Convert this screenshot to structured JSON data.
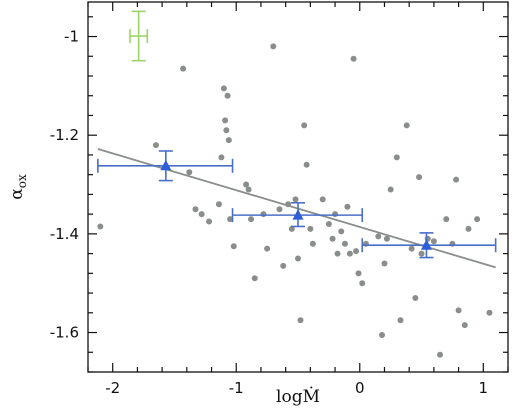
{
  "chart_data": {
    "type": "scatter",
    "xlabel": "logṀ",
    "ylabel": "α",
    "ylabel_sub": "ox",
    "xlim": [
      -2.2,
      1.2
    ],
    "ylim": [
      -1.68,
      -0.93
    ],
    "xticks": [
      -2,
      -1,
      0,
      1
    ],
    "xtick_labels": [
      "-2",
      "-1",
      "0",
      "1"
    ],
    "yticks": [
      -1.6,
      -1.4,
      -1.2,
      -1.0
    ],
    "ytick_labels": [
      "-1.6",
      "-1.4",
      "-1.2",
      "-1"
    ],
    "colors": {
      "points": "#8a8e8b",
      "binned": "#2f5fd6",
      "binned_errorbar": "#4a6fc9",
      "fit_line": "#8a8e8b",
      "typical_error": "#9ed36a"
    },
    "series": [
      {
        "values": [
          [
            -2.1,
            -1.385
          ],
          [
            -1.65,
            -1.22
          ],
          [
            -1.43,
            -1.065
          ],
          [
            -1.38,
            -1.275
          ],
          [
            -1.33,
            -1.35
          ],
          [
            -1.28,
            -1.36
          ],
          [
            -1.22,
            -1.375
          ],
          [
            -1.14,
            -1.34
          ],
          [
            -1.12,
            -1.245
          ],
          [
            -1.1,
            -1.105
          ],
          [
            -1.09,
            -1.17
          ],
          [
            -1.08,
            -1.19
          ],
          [
            -1.07,
            -1.12
          ],
          [
            -1.06,
            -1.21
          ],
          [
            -1.05,
            -1.37
          ],
          [
            -1.02,
            -1.425
          ],
          [
            -0.92,
            -1.3
          ],
          [
            -0.9,
            -1.31
          ],
          [
            -0.88,
            -1.37
          ],
          [
            -0.85,
            -1.49
          ],
          [
            -0.78,
            -1.36
          ],
          [
            -0.75,
            -1.43
          ],
          [
            -0.7,
            -1.02
          ],
          [
            -0.65,
            -1.35
          ],
          [
            -0.62,
            -1.465
          ],
          [
            -0.58,
            -1.34
          ],
          [
            -0.55,
            -1.39
          ],
          [
            -0.52,
            -1.33
          ],
          [
            -0.5,
            -1.45
          ],
          [
            -0.48,
            -1.575
          ],
          [
            -0.45,
            -1.18
          ],
          [
            -0.43,
            -1.26
          ],
          [
            -0.4,
            -1.39
          ],
          [
            -0.38,
            -1.42
          ],
          [
            -0.3,
            -1.33
          ],
          [
            -0.25,
            -1.38
          ],
          [
            -0.22,
            -1.41
          ],
          [
            -0.2,
            -1.36
          ],
          [
            -0.18,
            -1.44
          ],
          [
            -0.15,
            -1.395
          ],
          [
            -0.12,
            -1.42
          ],
          [
            -0.1,
            -1.345
          ],
          [
            -0.08,
            -1.44
          ],
          [
            -0.05,
            -1.045
          ],
          [
            -0.03,
            -1.435
          ],
          [
            -0.01,
            -1.48
          ],
          [
            0.02,
            -1.5
          ],
          [
            0.05,
            -1.42
          ],
          [
            0.15,
            -1.405
          ],
          [
            0.18,
            -1.605
          ],
          [
            0.2,
            -1.46
          ],
          [
            0.22,
            -1.41
          ],
          [
            0.25,
            -1.31
          ],
          [
            0.3,
            -1.245
          ],
          [
            0.33,
            -1.575
          ],
          [
            0.38,
            -1.18
          ],
          [
            0.42,
            -1.43
          ],
          [
            0.45,
            -1.53
          ],
          [
            0.48,
            -1.285
          ],
          [
            0.5,
            -1.44
          ],
          [
            0.55,
            -1.41
          ],
          [
            0.6,
            -1.415
          ],
          [
            0.65,
            -1.645
          ],
          [
            0.7,
            -1.37
          ],
          [
            0.75,
            -1.42
          ],
          [
            0.78,
            -1.29
          ],
          [
            0.8,
            -1.555
          ],
          [
            0.85,
            -1.585
          ],
          [
            0.88,
            -1.39
          ],
          [
            0.95,
            -1.37
          ],
          [
            1.05,
            -1.56
          ]
        ]
      },
      {
        "values": [
          {
            "x": -1.57,
            "y": -1.262,
            "xlo": -2.12,
            "xhi": -1.03,
            "ylo": -1.292,
            "yhi": -1.232
          },
          {
            "x": -0.5,
            "y": -1.362,
            "xlo": -1.03,
            "xhi": 0.02,
            "ylo": -1.385,
            "yhi": -1.337
          },
          {
            "x": 0.54,
            "y": -1.423,
            "xlo": 0.02,
            "xhi": 1.1,
            "ylo": -1.448,
            "yhi": -1.398
          }
        ]
      },
      {
        "values": [
          [
            -2.12,
            -1.228
          ],
          [
            1.1,
            -1.468
          ]
        ]
      },
      {
        "values": [
          {
            "x": -1.79,
            "y": -0.999,
            "xerr": 0.07,
            "yerr": 0.05
          }
        ]
      }
    ]
  }
}
